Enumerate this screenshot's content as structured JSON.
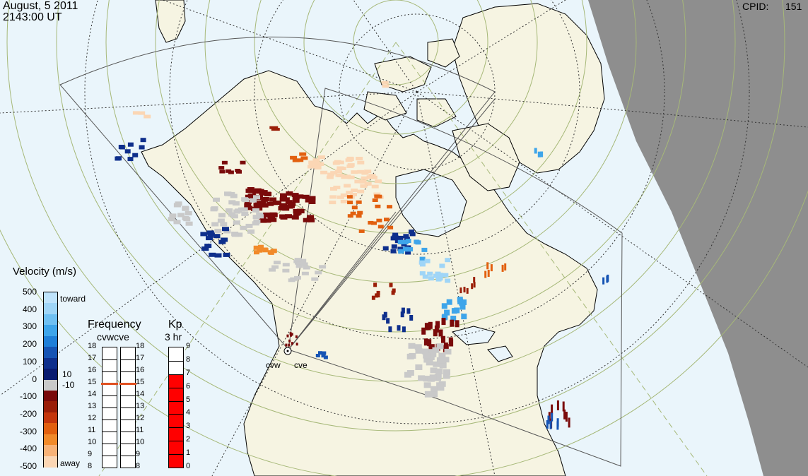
{
  "header": {
    "date": "August, 5 2011",
    "time": "2143:00 UT",
    "cpid_label": "CPID:",
    "cpid_value": "151"
  },
  "radars": {
    "west": "cvw",
    "east": "cve"
  },
  "velocity_scale": {
    "title": "Velocity (m/s)",
    "ticks": [
      "500",
      "400",
      "300",
      "200",
      "100",
      "0",
      "-100",
      "-200",
      "-300",
      "-400",
      "-500"
    ],
    "toward_label": "toward",
    "away_label": "away",
    "gate_pos": "10",
    "gate_neg": "-10",
    "colors": [
      "#bfe3fb",
      "#9fd5f7",
      "#6fc0f2",
      "#3ea5ea",
      "#1f7fd8",
      "#1654b4",
      "#0e2f8c",
      "#081a70",
      "#c9c9c9",
      "#7a0a0a",
      "#9a1e08",
      "#c4360c",
      "#e2600f",
      "#f18a2a",
      "#f8b277",
      "#fbd6b4"
    ]
  },
  "frequency": {
    "title": "Frequency",
    "subtitle": "cvwcve",
    "ticks": [
      "18",
      "17",
      "16",
      "15",
      "14",
      "13",
      "12",
      "11",
      "10",
      "9",
      "8"
    ],
    "west_value_mhz": 15,
    "east_value_mhz": 15,
    "marker_color": "#e05020"
  },
  "kp": {
    "title": "Kp",
    "subtitle": "3 hr",
    "ticks": [
      "9",
      "8",
      "7",
      "6",
      "5",
      "4",
      "3",
      "2",
      "1",
      "0"
    ],
    "value": 7,
    "fill_color": "#ff0000"
  },
  "map_colors": {
    "ocean": "#eaf5fb",
    "land": "#f6f4e2",
    "night": "#8e8e8e",
    "coast": "#000000",
    "grid_lat": "#a6b878"
  }
}
